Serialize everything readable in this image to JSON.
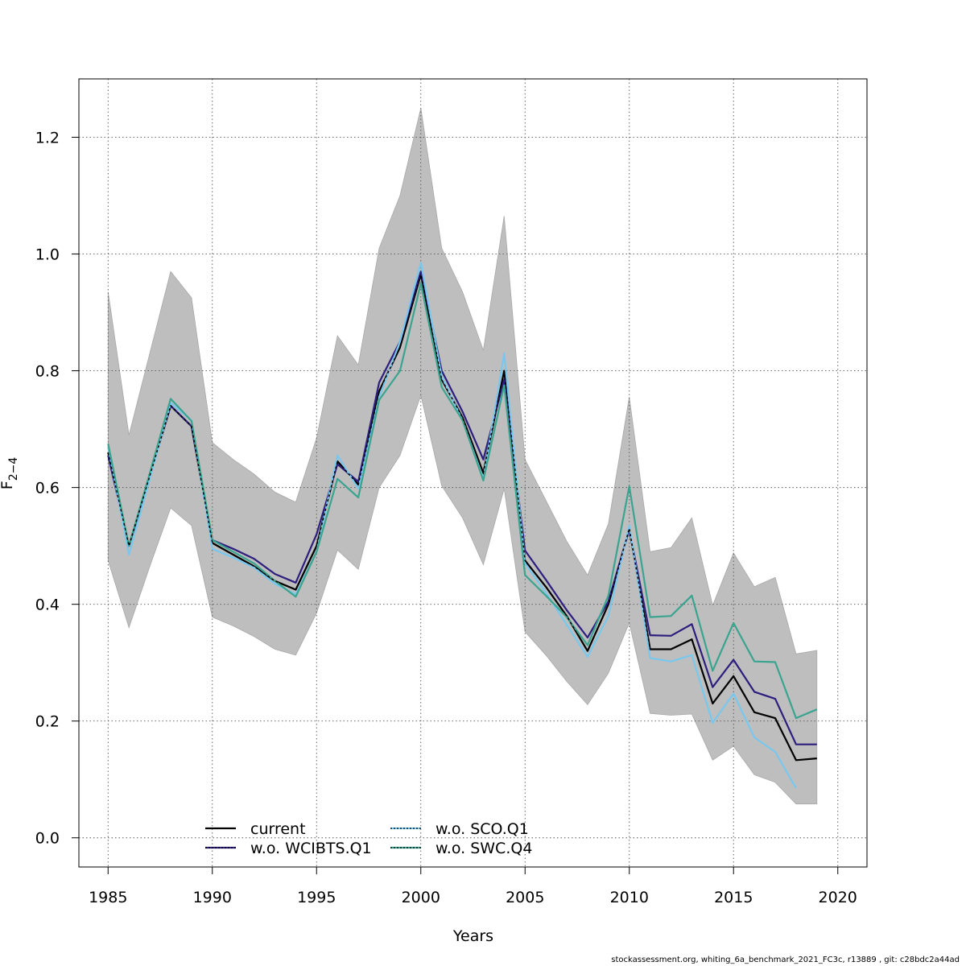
{
  "chart_data": {
    "type": "line",
    "xlabel": "Years",
    "ylabel": "F̄2−4",
    "xlim": [
      1983.6,
      2021.4
    ],
    "ylim": [
      -0.05,
      1.3
    ],
    "grid": true,
    "x_ticks": [
      "1985",
      "1990",
      "1995",
      "2000",
      "2005",
      "2010",
      "2015",
      "2020"
    ],
    "y_ticks": [
      "0.0",
      "0.2",
      "0.4",
      "0.6",
      "0.8",
      "1.0",
      "1.2"
    ],
    "x": [
      1985,
      1986,
      1987,
      1988,
      1989,
      1990,
      1991,
      1992,
      1993,
      1994,
      1995,
      1996,
      1997,
      1998,
      1999,
      2000,
      2001,
      2002,
      2003,
      2004,
      2005,
      2006,
      2007,
      2008,
      2009,
      2010,
      2011,
      2012,
      2013,
      2014,
      2015,
      2016,
      2017,
      2018,
      2019
    ],
    "confidence_band": {
      "color": "#bebebe",
      "lower": [
        0.475,
        0.36,
        0.465,
        0.565,
        0.535,
        0.378,
        0.363,
        0.345,
        0.323,
        0.313,
        0.385,
        0.493,
        0.46,
        0.6,
        0.655,
        0.758,
        0.603,
        0.548,
        0.468,
        0.598,
        0.353,
        0.313,
        0.268,
        0.228,
        0.282,
        0.368,
        0.213,
        0.21,
        0.212,
        0.133,
        0.157,
        0.108,
        0.095,
        0.058,
        0.058
      ],
      "upper": [
        0.935,
        0.69,
        0.83,
        0.97,
        0.925,
        0.677,
        0.648,
        0.623,
        0.592,
        0.575,
        0.685,
        0.86,
        0.81,
        1.01,
        1.1,
        1.25,
        1.01,
        0.935,
        0.835,
        1.065,
        0.648,
        0.578,
        0.508,
        0.45,
        0.538,
        0.755,
        0.49,
        0.497,
        0.548,
        0.398,
        0.488,
        0.43,
        0.446,
        0.315,
        0.321
      ]
    },
    "series": [
      {
        "name": "current",
        "color": "#000000",
        "values": [
          0.66,
          0.5,
          0.62,
          0.74,
          0.705,
          0.505,
          0.485,
          0.465,
          0.44,
          0.425,
          0.5,
          0.645,
          0.605,
          0.765,
          0.84,
          0.965,
          0.785,
          0.72,
          0.625,
          0.8,
          0.475,
          0.43,
          0.38,
          0.32,
          0.4,
          0.53,
          0.323,
          0.323,
          0.34,
          0.23,
          0.277,
          0.215,
          0.205,
          0.133,
          0.136
        ]
      },
      {
        "name": "w.o. WCIBTS.Q1",
        "color": "#2d1e7e",
        "values": [
          0.655,
          0.5,
          0.62,
          0.74,
          0.705,
          0.51,
          0.495,
          0.478,
          0.452,
          0.437,
          0.52,
          0.64,
          0.61,
          0.78,
          0.85,
          0.97,
          0.8,
          0.73,
          0.648,
          0.785,
          0.492,
          0.442,
          0.39,
          0.343,
          0.405,
          0.528,
          0.347,
          0.346,
          0.366,
          0.258,
          0.305,
          0.25,
          0.238,
          0.16,
          0.16
        ]
      },
      {
        "name": "w.o. SCO.Q1",
        "color": "#78c8ee",
        "values": [
          0.67,
          0.485,
          0.615,
          0.745,
          0.715,
          0.495,
          0.48,
          0.463,
          0.435,
          0.417,
          0.49,
          0.655,
          0.598,
          0.755,
          0.85,
          0.985,
          0.79,
          0.715,
          0.615,
          0.83,
          0.47,
          0.42,
          0.365,
          0.31,
          0.38,
          0.535,
          0.308,
          0.302,
          0.313,
          0.197,
          0.247,
          0.172,
          0.147,
          0.085,
          null
        ]
      },
      {
        "name": "w.o. SWC.Q4",
        "color": "#3aa48f",
        "values": [
          0.675,
          0.5,
          0.625,
          0.752,
          0.714,
          0.51,
          0.49,
          0.47,
          0.44,
          0.413,
          0.49,
          0.615,
          0.583,
          0.75,
          0.8,
          0.95,
          0.772,
          0.715,
          0.612,
          0.775,
          0.45,
          0.415,
          0.378,
          0.33,
          0.415,
          0.602,
          0.378,
          0.38,
          0.415,
          0.286,
          0.368,
          0.302,
          0.301,
          0.205,
          0.22
        ]
      }
    ],
    "legend": {
      "position": "bottom-left",
      "columns": 2
    }
  },
  "footer": "stockassessment.org, whiting_6a_benchmark_2021_FC3c, r13889 , git: c28bdc2a44ad"
}
